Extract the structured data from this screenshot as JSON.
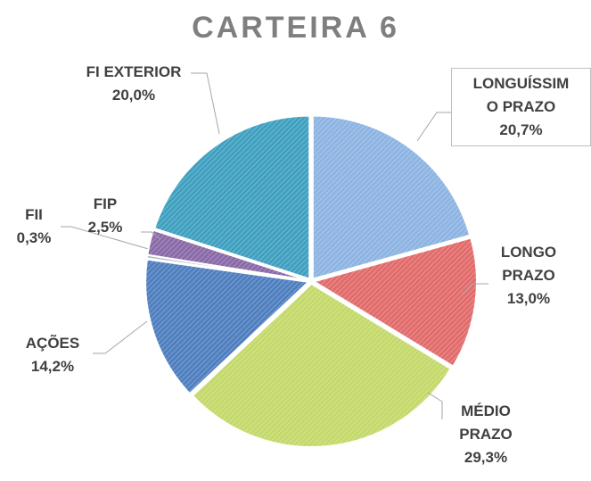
{
  "chart_data": {
    "type": "pie",
    "title": "CARTEIRA 6",
    "categories": [
      "LONGUÍSSIMO PRAZO",
      "LONGO PRAZO",
      "MÉDIO PRAZO",
      "AÇÕES",
      "FII",
      "FIP",
      "FI EXTERIOR"
    ],
    "values": [
      20.7,
      13.0,
      29.3,
      14.2,
      0.3,
      2.5,
      20.0
    ],
    "value_labels": [
      "20,7%",
      "13,0%",
      "29,3%",
      "14,2%",
      "0,3%",
      "2,5%",
      "20,0%"
    ],
    "colors": [
      "#8db4e2",
      "#e26b6b",
      "#c4d96a",
      "#4f7fbf",
      "#a9a9c9",
      "#8a6aa8",
      "#3fa0c0"
    ]
  }
}
